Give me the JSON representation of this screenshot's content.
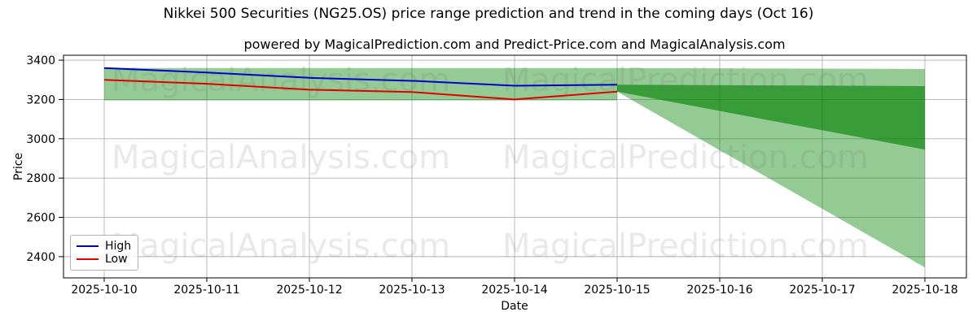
{
  "header": {
    "title": "Nikkei 500 Securities (NG25.OS) price range prediction and trend in the coming days (Oct 16)",
    "subtitle": "powered by MagicalPrediction.com and Predict-Price.com and MagicalAnalysis.com"
  },
  "watermarks": {
    "left_text": "MagicalAnalysis.com",
    "right_text": "MagicalPrediction.com"
  },
  "chart_data": {
    "type": "line",
    "title": "Nikkei 500 Securities (NG25.OS) price range prediction and trend in the coming days (Oct 16)",
    "subtitle": "powered by MagicalPrediction.com and Predict-Price.com and MagicalAnalysis.com",
    "xlabel": "Date",
    "ylabel": "Price",
    "x_dates": [
      "2025-10-10",
      "2025-10-11",
      "2025-10-12",
      "2025-10-13",
      "2025-10-14",
      "2025-10-15",
      "2025-10-16",
      "2025-10-17",
      "2025-10-18"
    ],
    "yticks": [
      2400,
      2600,
      2800,
      3000,
      3200,
      3400
    ],
    "ylim": [
      2292,
      3425
    ],
    "grid": true,
    "legend_position": "lower left",
    "series": [
      {
        "name": "High",
        "color": "#0000cd",
        "x_index": [
          0,
          1,
          2,
          3,
          4,
          5
        ],
        "values": [
          3360,
          3337,
          3310,
          3295,
          3270,
          3275
        ]
      },
      {
        "name": "Low",
        "color": "#e00000",
        "x_index": [
          0,
          1,
          2,
          3,
          4,
          5
        ],
        "values": [
          3300,
          3280,
          3250,
          3238,
          3200,
          3240
        ]
      }
    ],
    "bands": {
      "color": "#008000",
      "historical": {
        "x_index": [
          0,
          5
        ],
        "top": [
          3360,
          3360
        ],
        "bottom": [
          3195,
          3195
        ],
        "alpha": 0.42
      },
      "outer_forecast": {
        "x_index": [
          5,
          8
        ],
        "top": [
          3360,
          3355
        ],
        "bottom": [
          3240,
          2345
        ],
        "alpha": 0.42
      },
      "inner_forecast": {
        "x_index": [
          5,
          8
        ],
        "top": [
          3275,
          3268
        ],
        "bottom": [
          3240,
          2945
        ],
        "alpha": 0.62
      }
    },
    "legend": [
      {
        "label": "High",
        "color": "#0000cd"
      },
      {
        "label": "Low",
        "color": "#e00000"
      }
    ],
    "colors": {
      "grid": "#b0b0b0",
      "spine": "#000000",
      "tick_text": "#000000",
      "watermark": "#787878"
    }
  }
}
